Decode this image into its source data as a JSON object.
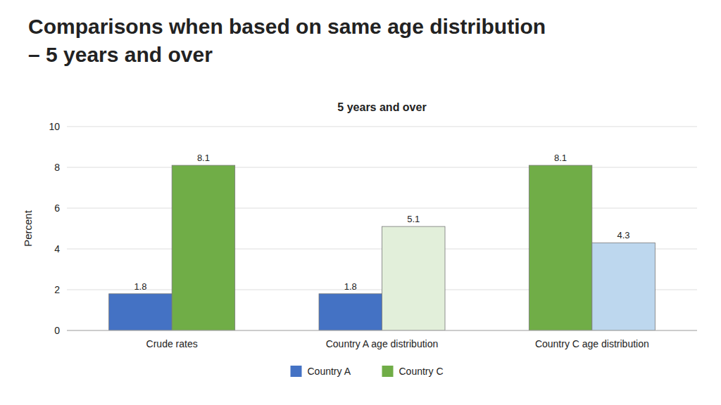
{
  "chart_data": {
    "type": "bar",
    "title": "Comparisons when based on same age distribution\n– 5 years and over",
    "subtitle": "5 years and over",
    "y_label": "Percent",
    "categories": [
      "Crude rates",
      "Country A age distribution",
      "Country C age distribution"
    ],
    "series": [
      {
        "name": "Country A",
        "color": "#4472C4",
        "colors": [
          "#4472C4",
          "#4472C4",
          "#70AD47"
        ],
        "values": [
          1.8,
          1.8,
          8.1
        ]
      },
      {
        "name": "Country C",
        "color": "#70AD47",
        "colors": [
          "#70AD47",
          "#E2EFDA",
          "#BDD7EE"
        ],
        "values": [
          8.1,
          5.1,
          4.3
        ]
      }
    ],
    "ylim": [
      0,
      10
    ],
    "yticks": [
      0,
      2,
      4,
      6,
      8,
      10
    ],
    "grid": true,
    "data_labels": true,
    "legend": "bottom"
  }
}
